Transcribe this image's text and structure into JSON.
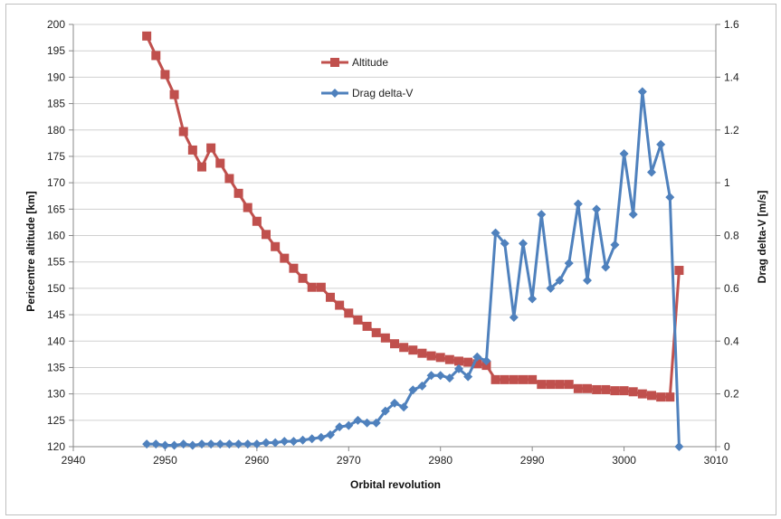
{
  "chart_data": {
    "type": "line",
    "title": "",
    "xlabel": "Orbital revolution",
    "ylabel_left": "Pericentre altitude [km]",
    "ylabel_right": "Drag delta-V [m/s]",
    "xlim": [
      2940,
      3010
    ],
    "ylim_left": [
      120,
      200
    ],
    "ylim_right": [
      0,
      1.6
    ],
    "x_ticks": [
      2940,
      2950,
      2960,
      2970,
      2980,
      2990,
      3000,
      3010
    ],
    "y_left_ticks": [
      120,
      125,
      130,
      135,
      140,
      145,
      150,
      155,
      160,
      165,
      170,
      175,
      180,
      185,
      190,
      195,
      200
    ],
    "y_right_ticks": [
      0,
      0.2,
      0.4,
      0.6,
      0.8,
      1,
      1.2,
      1.4,
      1.6
    ],
    "grid": "horizontal",
    "legend_position": "top-center",
    "series": [
      {
        "name": "Altitude",
        "axis": "left",
        "color": "#c0504d",
        "marker": "square",
        "x": [
          2948,
          2949,
          2950,
          2951,
          2952,
          2953,
          2954,
          2955,
          2956,
          2957,
          2958,
          2959,
          2960,
          2961,
          2962,
          2963,
          2964,
          2965,
          2966,
          2967,
          2968,
          2969,
          2970,
          2971,
          2972,
          2973,
          2974,
          2975,
          2976,
          2977,
          2978,
          2979,
          2980,
          2981,
          2982,
          2983,
          2984,
          2985,
          2986,
          2987,
          2988,
          2989,
          2990,
          2991,
          2992,
          2993,
          2994,
          2995,
          2996,
          2997,
          2998,
          2999,
          3000,
          3001,
          3002,
          3003,
          3004,
          3005,
          3006
        ],
        "y": [
          197.8,
          194.1,
          190.5,
          186.7,
          179.7,
          176.2,
          173.0,
          176.6,
          173.7,
          170.8,
          168.0,
          165.3,
          162.7,
          160.2,
          157.9,
          155.7,
          153.8,
          151.9,
          150.2,
          150.2,
          148.3,
          146.8,
          145.3,
          144.0,
          142.8,
          141.6,
          140.6,
          139.5,
          138.8,
          138.3,
          137.7,
          137.2,
          136.9,
          136.5,
          136.2,
          136.0,
          135.7,
          135.4,
          132.7,
          132.7,
          132.7,
          132.7,
          132.7,
          131.8,
          131.8,
          131.8,
          131.8,
          131.0,
          131.0,
          130.8,
          130.8,
          130.6,
          130.6,
          130.4,
          130.0,
          129.7,
          129.4,
          129.4,
          153.4
        ]
      },
      {
        "name": "Drag delta-V",
        "axis": "right",
        "color": "#4f81bd",
        "marker": "diamond",
        "x": [
          2948,
          2949,
          2950,
          2951,
          2952,
          2953,
          2954,
          2955,
          2956,
          2957,
          2958,
          2959,
          2960,
          2961,
          2962,
          2963,
          2964,
          2965,
          2966,
          2967,
          2968,
          2969,
          2970,
          2971,
          2972,
          2973,
          2974,
          2975,
          2976,
          2977,
          2978,
          2979,
          2980,
          2981,
          2982,
          2983,
          2984,
          2985,
          2986,
          2987,
          2988,
          2989,
          2990,
          2991,
          2992,
          2993,
          2994,
          2995,
          2996,
          2997,
          2998,
          2999,
          3000,
          3001,
          3002,
          3003,
          3004,
          3005,
          3006
        ],
        "y": [
          0.01,
          0.01,
          0.005,
          0.005,
          0.01,
          0.005,
          0.01,
          0.01,
          0.01,
          0.01,
          0.01,
          0.01,
          0.01,
          0.015,
          0.015,
          0.02,
          0.02,
          0.025,
          0.03,
          0.035,
          0.045,
          0.075,
          0.08,
          0.1,
          0.09,
          0.09,
          0.135,
          0.165,
          0.15,
          0.215,
          0.23,
          0.27,
          0.27,
          0.26,
          0.295,
          0.265,
          0.34,
          0.325,
          0.81,
          0.77,
          0.49,
          0.77,
          0.56,
          0.88,
          0.6,
          0.63,
          0.695,
          0.92,
          0.63,
          0.9,
          0.68,
          0.765,
          1.11,
          0.88,
          1.345,
          1.04,
          1.145,
          0.945,
          0.0
        ]
      }
    ]
  }
}
